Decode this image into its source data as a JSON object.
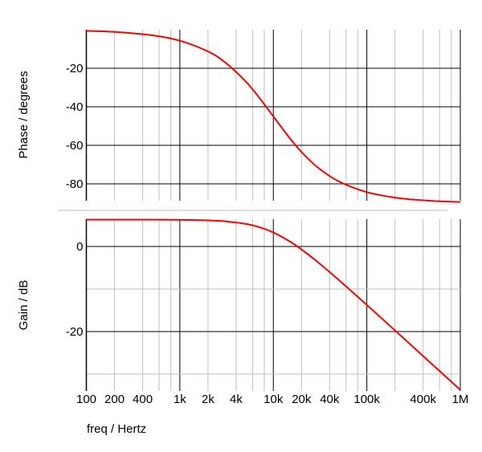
{
  "chart_data": [
    {
      "type": "line",
      "panel": "phase",
      "ylabel": "Phase / degrees",
      "xscale": "log",
      "xlim": [
        100,
        1000000
      ],
      "ylim": [
        -89,
        0
      ],
      "yticks": [
        -20,
        -40,
        -60,
        -80
      ],
      "ytick_labels": [
        "-20",
        "-40",
        "-60",
        "-80"
      ],
      "grid": true,
      "series": [
        {
          "name": "phase",
          "color": "#ff0000",
          "x": [
            100,
            200,
            500,
            1000,
            2000,
            3000,
            5000,
            7000,
            10000,
            15000,
            20000,
            30000,
            50000,
            100000,
            200000,
            300000,
            500000,
            1000000
          ],
          "y": [
            -0.57,
            -1.15,
            -2.86,
            -5.71,
            -11.31,
            -16.7,
            -26.57,
            -34.99,
            -45,
            -56.31,
            -63.43,
            -71.57,
            -78.69,
            -84.29,
            -87.14,
            -88.09,
            -88.85,
            -89.43
          ]
        }
      ]
    },
    {
      "type": "line",
      "panel": "gain",
      "ylabel": "Gain / dB",
      "xlabel": "freq / Hertz",
      "xscale": "log",
      "xlim": [
        100,
        1000000
      ],
      "ylim": [
        -34,
        6.4
      ],
      "yticks": [
        0,
        -20
      ],
      "ytick_labels": [
        "0",
        "-20"
      ],
      "minor_yticks": [
        -10,
        -30
      ],
      "xticks": [
        100,
        200,
        400,
        1000,
        2000,
        4000,
        10000,
        20000,
        40000,
        100000,
        400000,
        1000000
      ],
      "xtick_labels": [
        "100",
        "200",
        "400",
        "1k",
        "2k",
        "4k",
        "10k",
        "20k",
        "40k",
        "100k",
        "400k",
        "1M"
      ],
      "grid": true,
      "series": [
        {
          "name": "gain",
          "color": "#ff0000",
          "x": [
            100,
            200,
            500,
            1000,
            2000,
            3000,
            5000,
            7000,
            10000,
            15000,
            20000,
            30000,
            50000,
            100000,
            200000,
            300000,
            500000,
            1000000
          ],
          "y": [
            6.3,
            6.3,
            6.29,
            6.26,
            6.13,
            5.93,
            5.33,
            4.57,
            3.29,
            1.18,
            -0.69,
            -3.7,
            -7.85,
            -13.74,
            -19.73,
            -23.25,
            -27.68,
            -33.7
          ]
        }
      ]
    }
  ]
}
